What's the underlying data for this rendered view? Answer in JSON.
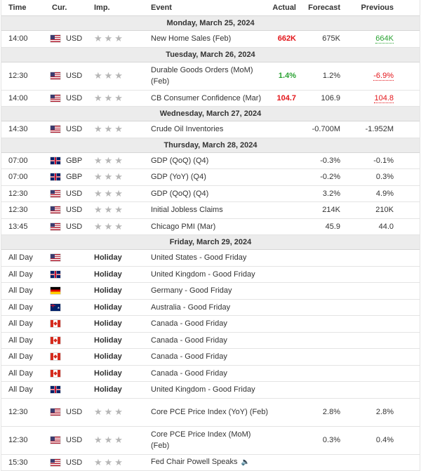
{
  "header": {
    "time": "Time",
    "currency": "Cur.",
    "importance": "Imp.",
    "event": "Event",
    "actual": "Actual",
    "forecast": "Forecast",
    "previous": "Previous"
  },
  "colors": {
    "negative": "#e3151a",
    "positive": "#2aa233",
    "day_bg": "#ececec",
    "star": "#b6b6b6"
  },
  "days": [
    {
      "label": "Monday, March 25, 2024",
      "events": [
        {
          "time": "14:00",
          "flag": "us-flag-icon",
          "cur": "USD",
          "imp": "★★★",
          "event": "New Home Sales (Feb)",
          "actual": "662K",
          "actual_color": "red",
          "forecast": "675K",
          "previous": "664K",
          "prev_color": "green"
        }
      ]
    },
    {
      "label": "Tuesday, March 26, 2024",
      "events": [
        {
          "time": "12:30",
          "flag": "us-flag-icon",
          "cur": "USD",
          "imp": "★★★",
          "event": "Durable Goods Orders (MoM) (Feb)",
          "actual": "1.4%",
          "actual_color": "green",
          "forecast": "1.2%",
          "previous": "-6.9%",
          "prev_color": "red"
        },
        {
          "time": "14:00",
          "flag": "us-flag-icon",
          "cur": "USD",
          "imp": "★★★",
          "event": "CB Consumer Confidence (Mar)",
          "actual": "104.7",
          "actual_color": "red",
          "forecast": "106.9",
          "previous": "104.8",
          "prev_color": "red"
        }
      ]
    },
    {
      "label": "Wednesday, March 27, 2024",
      "events": [
        {
          "time": "14:30",
          "flag": "us-flag-icon",
          "cur": "USD",
          "imp": "★★★",
          "event": "Crude Oil Inventories",
          "actual": "",
          "forecast": "-0.700M",
          "previous": "-1.952M"
        }
      ]
    },
    {
      "label": "Thursday, March 28, 2024",
      "events": [
        {
          "time": "07:00",
          "flag": "gb-flag-icon",
          "cur": "GBP",
          "imp": "★★★",
          "event": "GDP (QoQ) (Q4)",
          "actual": "",
          "forecast": "-0.3%",
          "previous": "-0.1%"
        },
        {
          "time": "07:00",
          "flag": "gb-flag-icon",
          "cur": "GBP",
          "imp": "★★★",
          "event": "GDP (YoY) (Q4)",
          "actual": "",
          "forecast": "-0.2%",
          "previous": "0.3%"
        },
        {
          "time": "12:30",
          "flag": "us-flag-icon",
          "cur": "USD",
          "imp": "★★★",
          "event": "GDP (QoQ) (Q4)",
          "actual": "",
          "forecast": "3.2%",
          "previous": "4.9%"
        },
        {
          "time": "12:30",
          "flag": "us-flag-icon",
          "cur": "USD",
          "imp": "★★★",
          "event": "Initial Jobless Claims",
          "actual": "",
          "forecast": "214K",
          "previous": "210K"
        },
        {
          "time": "13:45",
          "flag": "us-flag-icon",
          "cur": "USD",
          "imp": "★★★",
          "event": "Chicago PMI (Mar)",
          "actual": "",
          "forecast": "45.9",
          "previous": "44.0"
        }
      ]
    },
    {
      "label": "Friday, March 29, 2024",
      "events": [
        {
          "time": "All Day",
          "flag": "us-flag-icon",
          "cur": "",
          "holiday": "Holiday",
          "event": "United States - Good Friday"
        },
        {
          "time": "All Day",
          "flag": "gb-flag-icon",
          "cur": "",
          "holiday": "Holiday",
          "event": "United Kingdom - Good Friday"
        },
        {
          "time": "All Day",
          "flag": "de-flag-icon",
          "cur": "",
          "holiday": "Holiday",
          "event": "Germany - Good Friday"
        },
        {
          "time": "All Day",
          "flag": "au-flag-icon",
          "cur": "",
          "holiday": "Holiday",
          "event": "Australia - Good Friday"
        },
        {
          "time": "All Day",
          "flag": "ca-flag-icon",
          "cur": "",
          "holiday": "Holiday",
          "event": "Canada - Good Friday"
        },
        {
          "time": "All Day",
          "flag": "ca-flag-icon",
          "cur": "",
          "holiday": "Holiday",
          "event": "Canada - Good Friday"
        },
        {
          "time": "All Day",
          "flag": "ca-flag-icon",
          "cur": "",
          "holiday": "Holiday",
          "event": "Canada - Good Friday"
        },
        {
          "time": "All Day",
          "flag": "ca-flag-icon",
          "cur": "",
          "holiday": "Holiday",
          "event": "Canada - Good Friday"
        },
        {
          "time": "All Day",
          "flag": "gb-flag-icon",
          "cur": "",
          "holiday": "Holiday",
          "event": "United Kingdom - Good Friday"
        },
        {
          "time": "12:30",
          "flag": "us-flag-icon",
          "cur": "USD",
          "imp": "★★★",
          "event": "Core PCE Price Index (YoY) (Feb)",
          "actual": "",
          "forecast": "2.8%",
          "previous": "2.8%"
        },
        {
          "time": "12:30",
          "flag": "us-flag-icon",
          "cur": "USD",
          "imp": "★★★",
          "event": "Core PCE Price Index (MoM) (Feb)",
          "actual": "",
          "forecast": "0.3%",
          "previous": "0.4%"
        },
        {
          "time": "15:30",
          "flag": "us-flag-icon",
          "cur": "USD",
          "imp": "★★★",
          "event": "Fed Chair Powell Speaks",
          "speech_icon": "speaker-icon",
          "actual": "",
          "forecast": "",
          "previous": ""
        }
      ]
    }
  ]
}
